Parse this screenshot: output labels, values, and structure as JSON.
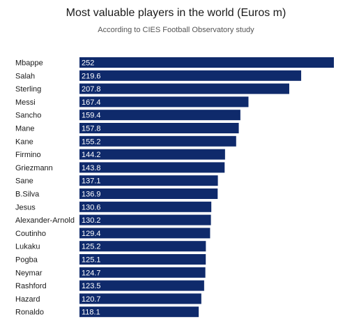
{
  "chart_data": {
    "type": "bar",
    "orientation": "horizontal",
    "title": "Most valuable players in the world (Euros m)",
    "subtitle": "According to CIES Football Observatory study",
    "xlim": [
      0,
      252
    ],
    "grid": false,
    "bar_color": "#0f2a6b",
    "categories": [
      "Mbappe",
      "Salah",
      "Sterling",
      "Messi",
      "Sancho",
      "Mane",
      "Kane",
      "Firmino",
      "Griezmann",
      "Sane",
      "B.Silva",
      "Jesus",
      "Alexander-Arnold",
      "Coutinho",
      "Lukaku",
      "Pogba",
      "Neymar",
      "Rashford",
      "Hazard",
      "Ronaldo"
    ],
    "values": [
      252,
      219.6,
      207.8,
      167.4,
      159.4,
      157.8,
      155.2,
      144.2,
      143.8,
      137.1,
      136.9,
      130.6,
      130.2,
      129.4,
      125.2,
      125.1,
      124.7,
      123.5,
      120.7,
      118.1
    ],
    "value_labels": [
      "252",
      "219.6",
      "207.8",
      "167.4",
      "159.4",
      "157.8",
      "155.2",
      "144.2",
      "143.8",
      "137.1",
      "136.9",
      "130.6",
      "130.2",
      "129.4",
      "125.2",
      "125.1",
      "124.7",
      "123.5",
      "120.7",
      "118.1"
    ]
  }
}
